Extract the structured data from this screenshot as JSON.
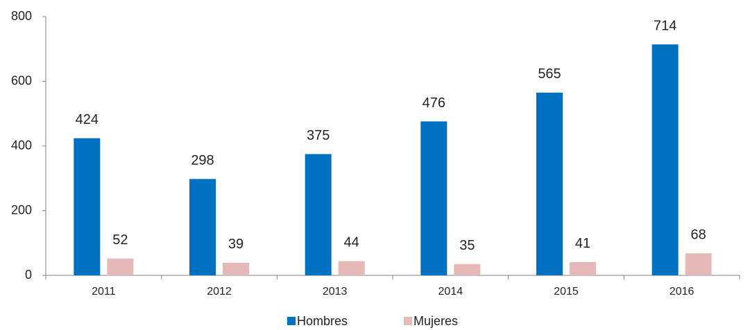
{
  "chart_data": {
    "type": "bar",
    "categories": [
      "2011",
      "2012",
      "2013",
      "2014",
      "2015",
      "2016"
    ],
    "series": [
      {
        "name": "Hombres",
        "color": "#0070c0",
        "values": [
          424,
          298,
          375,
          476,
          565,
          714
        ]
      },
      {
        "name": "Mujeres",
        "color": "#e6b9b8",
        "values": [
          52,
          39,
          44,
          35,
          41,
          68
        ]
      }
    ],
    "ylim": [
      0,
      800
    ],
    "yticks": [
      0,
      200,
      400,
      600,
      800
    ],
    "grid": false,
    "legend": "bottom"
  }
}
